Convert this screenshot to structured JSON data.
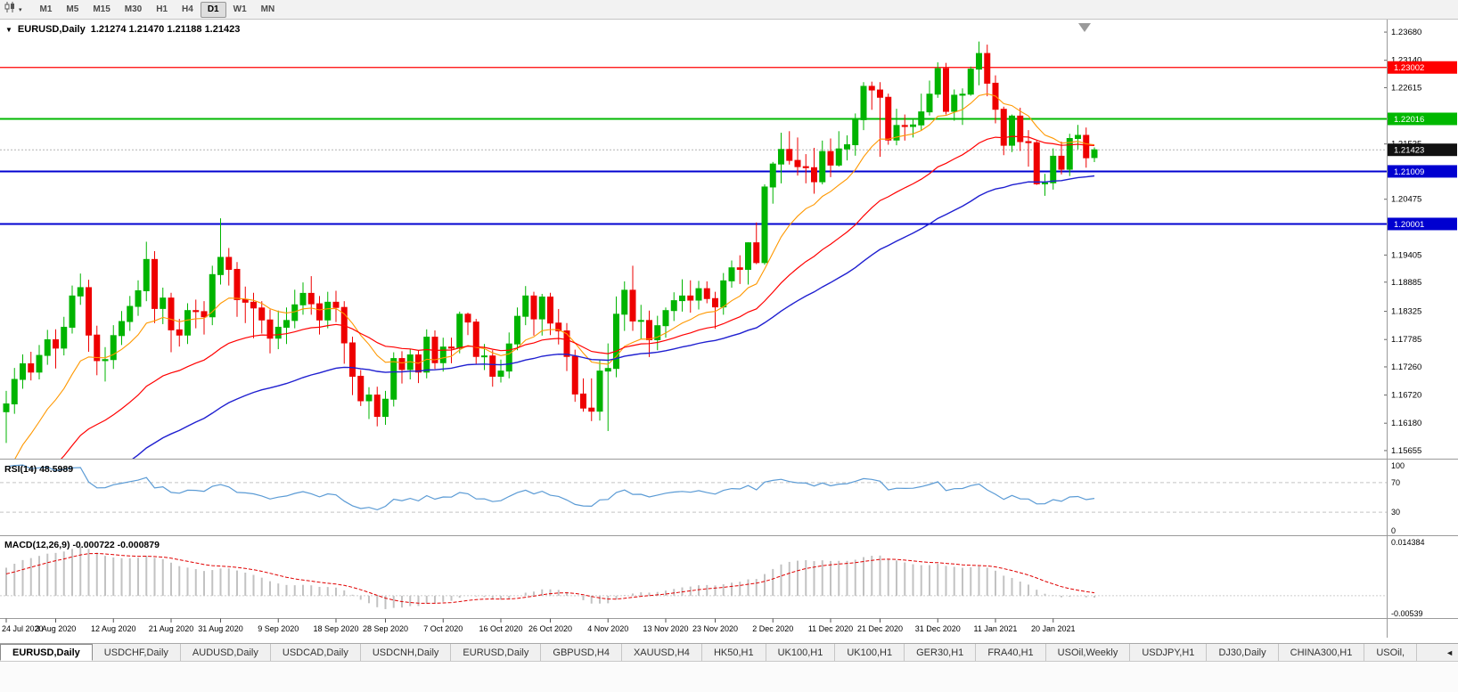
{
  "toolbar": {
    "timeframes": [
      {
        "label": "M1",
        "active": false
      },
      {
        "label": "M5",
        "active": false
      },
      {
        "label": "M15",
        "active": false
      },
      {
        "label": "M30",
        "active": false
      },
      {
        "label": "H1",
        "active": false
      },
      {
        "label": "H4",
        "active": false
      },
      {
        "label": "D1",
        "active": true
      },
      {
        "label": "W1",
        "active": false
      },
      {
        "label": "MN",
        "active": false
      }
    ],
    "dropdown_icon": "▾"
  },
  "chart": {
    "collapse_icon": "▼",
    "title_symbol": "EURUSD,Daily",
    "title_ohlc": "1.21274 1.21470 1.21188 1.21423"
  },
  "price_axis": {
    "labels": [
      {
        "v": 1.2368,
        "t": "1.23680"
      },
      {
        "v": 1.2314,
        "t": "1.23140"
      },
      {
        "v": 1.22615,
        "t": "1.22615"
      },
      {
        "v": 1.21535,
        "t": "1.21535"
      },
      {
        "v": 1.20475,
        "t": "1.20475"
      },
      {
        "v": 1.19405,
        "t": "1.19405"
      },
      {
        "v": 1.18885,
        "t": "1.18885"
      },
      {
        "v": 1.18325,
        "t": "1.18325"
      },
      {
        "v": 1.17785,
        "t": "1.17785"
      },
      {
        "v": 1.1726,
        "t": "1.17260"
      },
      {
        "v": 1.1672,
        "t": "1.16720"
      },
      {
        "v": 1.1618,
        "t": "1.16180"
      },
      {
        "v": 1.15655,
        "t": "1.15655"
      }
    ],
    "badges": [
      {
        "value": 1.23002,
        "text": "1.23002",
        "color": "#ff0000",
        "line": true,
        "line_width": 1.2
      },
      {
        "value": 1.22016,
        "text": "1.22016",
        "color": "#00b800",
        "line": true,
        "line_width": 2
      },
      {
        "value": 1.21423,
        "text": "1.21423",
        "color": "#111111",
        "line": false,
        "bid": true
      },
      {
        "value": 1.21009,
        "text": "1.21009",
        "color": "#0000d0",
        "line": true,
        "line_width": 2
      },
      {
        "value": 1.20001,
        "text": "1.20001",
        "color": "#0000d0",
        "line": true,
        "line_width": 2
      }
    ]
  },
  "rsi": {
    "label": "RSI(14) 48.5989",
    "value": 48.5989,
    "period": 14,
    "levels": [
      70,
      30
    ],
    "axis_labels": [
      "100",
      "70",
      "30",
      "0"
    ],
    "line_color": "#5b9bd5"
  },
  "macd": {
    "label": "MACD(12,26,9) -0.000722 -0.000879",
    "params": [
      12,
      26,
      9
    ],
    "macd_value": -0.000722,
    "signal_value": -0.000879,
    "axis_top": "0.014384",
    "axis_bottom": "-0.00539"
  },
  "chart_data": {
    "type": "candlestick",
    "symbol": "EURUSD",
    "timeframe": "Daily",
    "price_range": [
      1.155,
      1.2392
    ],
    "macd_range": [
      -0.00539,
      0.014384
    ],
    "up_color": "#00b400",
    "down_color": "#ee0000",
    "ma": [
      {
        "period": 12,
        "color": "#ff9800",
        "width": 1.1
      },
      {
        "period": 30,
        "color": "#ff0000",
        "width": 1.2
      },
      {
        "period": 55,
        "color": "#1f1fd0",
        "width": 1.4
      }
    ],
    "date_labels": [
      "24 Jul 2020",
      "3 Aug 2020",
      "12 Aug 2020",
      "21 Aug 2020",
      "31 Aug 2020",
      "9 Sep 2020",
      "18 Sep 2020",
      "28 Sep 2020",
      "7 Oct 2020",
      "16 Oct 2020",
      "26 Oct 2020",
      "4 Nov 2020",
      "13 Nov 2020",
      "23 Nov 2020",
      "2 Dec 2020",
      "11 Dec 2020",
      "21 Dec 2020",
      "31 Dec 2020",
      "11 Jan 2021",
      "20 Jan 2021"
    ],
    "date_ticks": [
      0,
      6,
      13,
      20,
      26,
      33,
      40,
      46,
      53,
      60,
      66,
      73,
      80,
      86,
      93,
      100,
      106,
      113,
      120,
      127
    ],
    "prior_closes": [
      1.119,
      1.1205,
      1.1198,
      1.1212,
      1.122,
      1.1215,
      1.1228,
      1.124,
      1.1233,
      1.1246,
      1.1252,
      1.1247,
      1.126,
      1.127,
      1.1264,
      1.1278,
      1.129,
      1.1283,
      1.1296,
      1.1305,
      1.1298,
      1.1312,
      1.132,
      1.1315,
      1.133,
      1.1342,
      1.1336,
      1.135,
      1.1362,
      1.1355,
      1.137,
      1.1383,
      1.1377,
      1.1392,
      1.1405,
      1.1398,
      1.1414,
      1.1428,
      1.142,
      1.1437,
      1.145,
      1.1443,
      1.146,
      1.1475,
      1.1468,
      1.1486,
      1.15,
      1.152,
      1.156,
      1.1602
    ],
    "candles": [
      [
        1.164,
        1.168,
        1.158,
        1.1655
      ],
      [
        1.1655,
        1.1724,
        1.1636,
        1.1702
      ],
      [
        1.1702,
        1.175,
        1.1684,
        1.1732
      ],
      [
        1.1732,
        1.1755,
        1.17,
        1.1716
      ],
      [
        1.1716,
        1.1768,
        1.1702,
        1.1748
      ],
      [
        1.1748,
        1.1797,
        1.173,
        1.1778
      ],
      [
        1.1778,
        1.1798,
        1.1723,
        1.1762
      ],
      [
        1.1762,
        1.1822,
        1.1748,
        1.1802
      ],
      [
        1.1802,
        1.1882,
        1.179,
        1.1862
      ],
      [
        1.1862,
        1.1905,
        1.1845,
        1.1878
      ],
      [
        1.1878,
        1.1893,
        1.1755,
        1.1787
      ],
      [
        1.1787,
        1.1805,
        1.171,
        1.1738
      ],
      [
        1.1738,
        1.1764,
        1.1698,
        1.174
      ],
      [
        1.174,
        1.1806,
        1.1722,
        1.1786
      ],
      [
        1.1786,
        1.1833,
        1.1768,
        1.1813
      ],
      [
        1.1813,
        1.1862,
        1.1795,
        1.1842
      ],
      [
        1.1842,
        1.1892,
        1.1824,
        1.1872
      ],
      [
        1.1872,
        1.1966,
        1.1852,
        1.1932
      ],
      [
        1.1932,
        1.1948,
        1.181,
        1.1838
      ],
      [
        1.1838,
        1.1878,
        1.1808,
        1.1858
      ],
      [
        1.1858,
        1.1868,
        1.1754,
        1.1797
      ],
      [
        1.1797,
        1.1818,
        1.1765,
        1.1787
      ],
      [
        1.1787,
        1.1848,
        1.177,
        1.1834
      ],
      [
        1.1834,
        1.1855,
        1.18,
        1.1832
      ],
      [
        1.1832,
        1.1852,
        1.1788,
        1.1822
      ],
      [
        1.1822,
        1.192,
        1.1806,
        1.1903
      ],
      [
        1.1903,
        1.2011,
        1.1884,
        1.1936
      ],
      [
        1.1936,
        1.1954,
        1.1882,
        1.1913
      ],
      [
        1.1913,
        1.1927,
        1.1822,
        1.1855
      ],
      [
        1.1855,
        1.188,
        1.181,
        1.185
      ],
      [
        1.185,
        1.1868,
        1.1781,
        1.1839
      ],
      [
        1.1839,
        1.1852,
        1.179,
        1.1816
      ],
      [
        1.1816,
        1.1836,
        1.1752,
        1.1781
      ],
      [
        1.1781,
        1.1834,
        1.176,
        1.1802
      ],
      [
        1.1802,
        1.184,
        1.177,
        1.1815
      ],
      [
        1.1815,
        1.1874,
        1.18,
        1.1845
      ],
      [
        1.1845,
        1.1888,
        1.1826,
        1.1867
      ],
      [
        1.1867,
        1.19,
        1.1826,
        1.1847
      ],
      [
        1.1847,
        1.1862,
        1.1788,
        1.1816
      ],
      [
        1.1816,
        1.187,
        1.18,
        1.185
      ],
      [
        1.185,
        1.1872,
        1.1812,
        1.184
      ],
      [
        1.184,
        1.1852,
        1.1732,
        1.1772
      ],
      [
        1.1772,
        1.1784,
        1.1672,
        1.1708
      ],
      [
        1.1708,
        1.172,
        1.1651,
        1.1661
      ],
      [
        1.1661,
        1.1687,
        1.1626,
        1.1672
      ],
      [
        1.1672,
        1.1688,
        1.1612,
        1.1631
      ],
      [
        1.1631,
        1.168,
        1.1615,
        1.1664
      ],
      [
        1.1664,
        1.1754,
        1.165,
        1.1742
      ],
      [
        1.1742,
        1.1756,
        1.1694,
        1.1721
      ],
      [
        1.1721,
        1.176,
        1.1702,
        1.1749
      ],
      [
        1.1749,
        1.1758,
        1.1695,
        1.1716
      ],
      [
        1.1716,
        1.1798,
        1.1704,
        1.1783
      ],
      [
        1.1783,
        1.1796,
        1.1722,
        1.1734
      ],
      [
        1.1734,
        1.1782,
        1.1717,
        1.1764
      ],
      [
        1.1764,
        1.1782,
        1.1733,
        1.1762
      ],
      [
        1.1762,
        1.1832,
        1.1752,
        1.1827
      ],
      [
        1.1827,
        1.183,
        1.1787,
        1.1812
      ],
      [
        1.1812,
        1.1818,
        1.1732,
        1.1746
      ],
      [
        1.1746,
        1.177,
        1.172,
        1.1747
      ],
      [
        1.1747,
        1.1758,
        1.1688,
        1.1708
      ],
      [
        1.1708,
        1.174,
        1.1696,
        1.1718
      ],
      [
        1.1718,
        1.1792,
        1.1704,
        1.177
      ],
      [
        1.177,
        1.184,
        1.1758,
        1.1823
      ],
      [
        1.1823,
        1.1881,
        1.1806,
        1.1862
      ],
      [
        1.1862,
        1.187,
        1.1786,
        1.1818
      ],
      [
        1.1818,
        1.1866,
        1.1786,
        1.186
      ],
      [
        1.186,
        1.1868,
        1.1787,
        1.181
      ],
      [
        1.181,
        1.1837,
        1.1769,
        1.1795
      ],
      [
        1.1795,
        1.181,
        1.1718,
        1.1746
      ],
      [
        1.1746,
        1.1759,
        1.1659,
        1.1674
      ],
      [
        1.1674,
        1.1704,
        1.164,
        1.1647
      ],
      [
        1.1647,
        1.1704,
        1.1622,
        1.1641
      ],
      [
        1.1641,
        1.174,
        1.1623,
        1.1718
      ],
      [
        1.1718,
        1.1771,
        1.1603,
        1.1723
      ],
      [
        1.1723,
        1.1861,
        1.1706,
        1.1827
      ],
      [
        1.1827,
        1.189,
        1.1795,
        1.1873
      ],
      [
        1.1873,
        1.192,
        1.1795,
        1.1814
      ],
      [
        1.1814,
        1.1845,
        1.1779,
        1.1815
      ],
      [
        1.1815,
        1.1834,
        1.1745,
        1.1778
      ],
      [
        1.1778,
        1.1824,
        1.1758,
        1.1805
      ],
      [
        1.1805,
        1.184,
        1.1782,
        1.1834
      ],
      [
        1.1834,
        1.1869,
        1.1814,
        1.1853
      ],
      [
        1.1853,
        1.1894,
        1.1832,
        1.1862
      ],
      [
        1.1862,
        1.1892,
        1.183,
        1.1854
      ],
      [
        1.1854,
        1.1891,
        1.1836,
        1.1876
      ],
      [
        1.1876,
        1.189,
        1.1848,
        1.1857
      ],
      [
        1.1857,
        1.187,
        1.1799,
        1.1841
      ],
      [
        1.1841,
        1.1906,
        1.1826,
        1.1891
      ],
      [
        1.1891,
        1.193,
        1.1878,
        1.1916
      ],
      [
        1.1916,
        1.194,
        1.1885,
        1.1913
      ],
      [
        1.1913,
        1.1965,
        1.1884,
        1.1964
      ],
      [
        1.1964,
        1.2003,
        1.1923,
        1.1926
      ],
      [
        1.1926,
        1.2076,
        1.1922,
        1.2071
      ],
      [
        1.2071,
        1.2119,
        1.2039,
        1.2115
      ],
      [
        1.2115,
        1.2175,
        1.2078,
        1.2143
      ],
      [
        1.2143,
        1.2178,
        1.2114,
        1.2122
      ],
      [
        1.2122,
        1.2166,
        1.2093,
        1.211
      ],
      [
        1.211,
        1.2134,
        1.2078,
        1.2108
      ],
      [
        1.2108,
        1.2146,
        1.2058,
        1.2081
      ],
      [
        1.2081,
        1.216,
        1.2076,
        1.2139
      ],
      [
        1.2139,
        1.2164,
        1.209,
        1.2113
      ],
      [
        1.2113,
        1.2178,
        1.211,
        1.2144
      ],
      [
        1.2144,
        1.217,
        1.2122,
        1.2152
      ],
      [
        1.2152,
        1.2212,
        1.2131,
        1.22
      ],
      [
        1.22,
        1.2272,
        1.218,
        1.2264
      ],
      [
        1.2264,
        1.2273,
        1.2219,
        1.2257
      ],
      [
        1.2257,
        1.2272,
        1.2129,
        1.2243
      ],
      [
        1.2243,
        1.225,
        1.2152,
        1.2161
      ],
      [
        1.2161,
        1.2221,
        1.2151,
        1.2189
      ],
      [
        1.2189,
        1.221,
        1.216,
        1.2187
      ],
      [
        1.2187,
        1.22,
        1.2166,
        1.219
      ],
      [
        1.219,
        1.225,
        1.218,
        1.2215
      ],
      [
        1.2215,
        1.2275,
        1.2208,
        1.2249
      ],
      [
        1.2249,
        1.231,
        1.2242,
        1.2298
      ],
      [
        1.2298,
        1.2309,
        1.221,
        1.2216
      ],
      [
        1.2216,
        1.2258,
        1.2198,
        1.2247
      ],
      [
        1.2247,
        1.226,
        1.219,
        1.2249
      ],
      [
        1.2249,
        1.2302,
        1.2246,
        1.2297
      ],
      [
        1.2297,
        1.235,
        1.2266,
        1.2327
      ],
      [
        1.2327,
        1.2344,
        1.2245,
        1.227
      ],
      [
        1.227,
        1.2285,
        1.2193,
        1.222
      ],
      [
        1.222,
        1.2225,
        1.2132,
        1.2151
      ],
      [
        1.2151,
        1.221,
        1.2138,
        1.2207
      ],
      [
        1.2207,
        1.2223,
        1.214,
        1.2158
      ],
      [
        1.2158,
        1.218,
        1.211,
        1.2156
      ],
      [
        1.2156,
        1.216,
        1.2075,
        1.2077
      ],
      [
        1.2077,
        1.2096,
        1.2054,
        1.2079
      ],
      [
        1.2079,
        1.2145,
        1.2066,
        1.213
      ],
      [
        1.213,
        1.2158,
        1.2095,
        1.2105
      ],
      [
        1.2105,
        1.2173,
        1.2092,
        1.2164
      ],
      [
        1.2164,
        1.219,
        1.2143,
        1.217
      ],
      [
        1.217,
        1.2185,
        1.2108,
        1.2127
      ],
      [
        1.21274,
        1.2147,
        1.21188,
        1.21423
      ]
    ]
  },
  "tabs": {
    "scroll_icon": "◄",
    "items": [
      {
        "label": "EURUSD,Daily",
        "active": true
      },
      {
        "label": "USDCHF,Daily",
        "active": false
      },
      {
        "label": "AUDUSD,Daily",
        "active": false
      },
      {
        "label": "USDCAD,Daily",
        "active": false
      },
      {
        "label": "USDCNH,Daily",
        "active": false
      },
      {
        "label": "EURUSD,Daily",
        "active": false
      },
      {
        "label": "GBPUSD,H4",
        "active": false
      },
      {
        "label": "XAUUSD,H4",
        "active": false
      },
      {
        "label": "HK50,H1",
        "active": false
      },
      {
        "label": "UK100,H1",
        "active": false
      },
      {
        "label": "UK100,H1",
        "active": false
      },
      {
        "label": "GER30,H1",
        "active": false
      },
      {
        "label": "FRA40,H1",
        "active": false
      },
      {
        "label": "USOil,Weekly",
        "active": false
      },
      {
        "label": "USDJPY,H1",
        "active": false
      },
      {
        "label": "DJ30,Daily",
        "active": false
      },
      {
        "label": "CHINA300,H1",
        "active": false
      },
      {
        "label": "USOil,",
        "active": false
      }
    ]
  }
}
